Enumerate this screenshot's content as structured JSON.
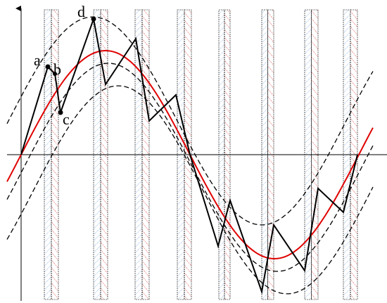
{
  "points": [
    {
      "label": "a"
    },
    {
      "label": "b"
    },
    {
      "label": "c"
    },
    {
      "label": "d"
    }
  ]
}
